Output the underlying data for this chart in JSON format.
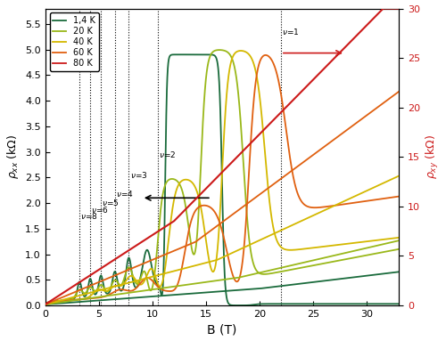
{
  "xlabel": "B (T)",
  "ylabel_left": "ρ_xx (kΩ)",
  "ylabel_right": "ρ_xy (kΩ)",
  "xlim": [
    0,
    33
  ],
  "ylim_left": [
    0,
    5.8
  ],
  "ylim_right": [
    0,
    30
  ],
  "colors": {
    "1.4K": "#1a6b3c",
    "20K": "#9ab81a",
    "40K": "#d4b800",
    "60K": "#e06010",
    "80K": "#cc1a1a"
  },
  "yticks_left": [
    0.0,
    0.5,
    1.0,
    1.5,
    2.0,
    2.5,
    3.0,
    3.5,
    4.0,
    4.5,
    5.0,
    5.5
  ],
  "yticks_right": [
    0,
    5,
    10,
    15,
    20,
    25,
    30
  ]
}
